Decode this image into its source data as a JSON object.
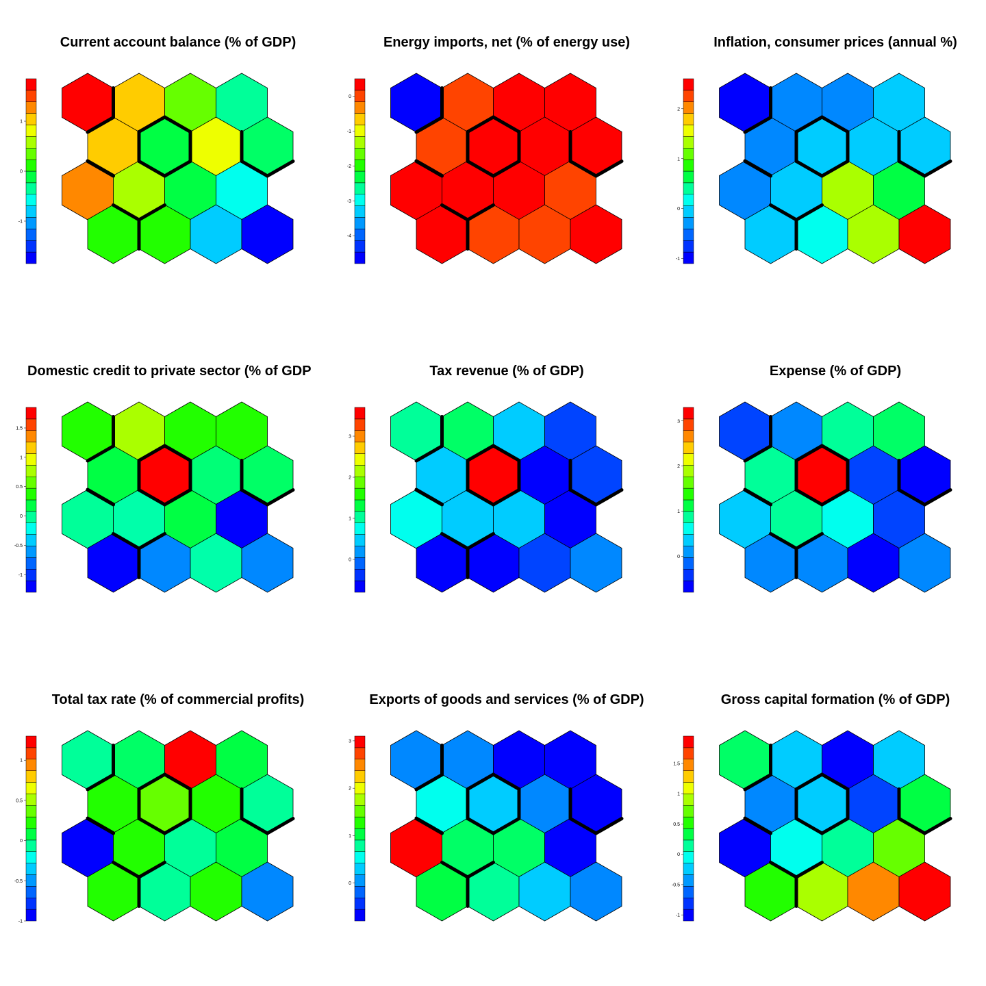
{
  "chart_data": {
    "type": "heatmap",
    "description_grid": "4x4 hexagonal self-organizing-map grid, 9 component planes",
    "palette": [
      "#0000ff",
      "#0033ff",
      "#0066ff",
      "#0099ff",
      "#00ccff",
      "#00ffee",
      "#00ff99",
      "#00ff44",
      "#22ff00",
      "#66ff00",
      "#aaff00",
      "#eeff00",
      "#ffcc00",
      "#ff8800",
      "#ff4400",
      "#ff0000"
    ],
    "panels": [
      {
        "title": "Current account balance (% of GDP)",
        "scale": {
          "min": -1.85,
          "max": 1.85,
          "ticks": [
            -1,
            0,
            1
          ],
          "tick_labels": [
            "-1",
            "0",
            "1"
          ]
        },
        "cells": [
          [
            "#ff0000",
            "#ffcc00",
            "#66ff00",
            "#00ff99"
          ],
          [
            "#ffcc00",
            "#00ff44",
            "#eeff00",
            "#00ff66"
          ],
          [
            "#ff8800",
            "#aaff00",
            "#00ff44",
            "#00ffee"
          ],
          [
            "#22ff00",
            "#22ff00",
            "#00ccff",
            "#0000ff"
          ]
        ]
      },
      {
        "title": "Energy imports, net (% of energy use)",
        "scale": {
          "min": -4.8,
          "max": 0.5,
          "ticks": [
            0,
            -1,
            -2,
            -3,
            -4
          ],
          "tick_labels": [
            "0",
            "-1",
            "-2",
            "-3",
            "-4"
          ]
        },
        "cells": [
          [
            "#0000ff",
            "#ff4400",
            "#ff0000",
            "#ff0000"
          ],
          [
            "#ff4400",
            "#ff0000",
            "#ff0000",
            "#ff0000"
          ],
          [
            "#ff0000",
            "#ff0000",
            "#ff0000",
            "#ff4400"
          ],
          [
            "#ff0000",
            "#ff4400",
            "#ff4400",
            "#ff0000"
          ]
        ]
      },
      {
        "title": "Inflation, consumer prices (annual %)",
        "scale": {
          "min": -1.1,
          "max": 2.6,
          "ticks": [
            2,
            1,
            0,
            -1
          ],
          "tick_labels": [
            "2",
            "1",
            "0",
            "-1"
          ]
        },
        "cells": [
          [
            "#0000ff",
            "#0088ff",
            "#0088ff",
            "#00ccff"
          ],
          [
            "#0088ff",
            "#00ccff",
            "#00ccff",
            "#00ccff"
          ],
          [
            "#0088ff",
            "#00ccff",
            "#aaff00",
            "#00ff44"
          ],
          [
            "#00ccff",
            "#00ffee",
            "#aaff00",
            "#ff0000"
          ]
        ]
      },
      {
        "title": "Domestic credit to private sector (% of GDP",
        "scale": {
          "min": -1.3,
          "max": 1.85,
          "ticks": [
            1.5,
            1,
            0.5,
            0,
            -0.5,
            -1
          ],
          "tick_labels": [
            "1.5",
            "1",
            "0.5",
            "0",
            "-0.5",
            "-1"
          ]
        },
        "cells": [
          [
            "#22ff00",
            "#aaff00",
            "#22ff00",
            "#22ff00"
          ],
          [
            "#00ff44",
            "#ff0000",
            "#00ff77",
            "#00ff66"
          ],
          [
            "#00ff99",
            "#00ffaa",
            "#00ff44",
            "#0000ff"
          ],
          [
            "#0000ff",
            "#0088ff",
            "#00ffaa",
            "#0088ff"
          ]
        ]
      },
      {
        "title": "Tax revenue (% of GDP)",
        "scale": {
          "min": -0.8,
          "max": 3.7,
          "ticks": [
            3,
            2,
            1,
            0
          ],
          "tick_labels": [
            "3",
            "2",
            "1",
            "0"
          ]
        },
        "cells": [
          [
            "#00ff99",
            "#00ff66",
            "#00ccff",
            "#0044ff"
          ],
          [
            "#00ccff",
            "#ff0000",
            "#0000ff",
            "#0044ff"
          ],
          [
            "#00ffee",
            "#00ccff",
            "#00ccff",
            "#0000ff"
          ],
          [
            "#0000ff",
            "#0000ff",
            "#0044ff",
            "#0088ff"
          ]
        ]
      },
      {
        "title": "Expense (% of GDP)",
        "scale": {
          "min": -0.8,
          "max": 3.3,
          "ticks": [
            3,
            2,
            1,
            0
          ],
          "tick_labels": [
            "3",
            "2",
            "1",
            "0"
          ]
        },
        "cells": [
          [
            "#0044ff",
            "#0088ff",
            "#00ff99",
            "#00ff66"
          ],
          [
            "#00ff99",
            "#ff0000",
            "#0044ff",
            "#0000ff"
          ],
          [
            "#00ccff",
            "#00ff99",
            "#00ffee",
            "#0044ff"
          ],
          [
            "#0088ff",
            "#0088ff",
            "#0000ff",
            "#0088ff"
          ]
        ]
      },
      {
        "title": "Total tax rate (% of commercial profits)",
        "scale": {
          "min": -1.0,
          "max": 1.3,
          "ticks": [
            1,
            0.5,
            0,
            -0.5,
            -1
          ],
          "tick_labels": [
            "1",
            "0.5",
            "0",
            "-0.5",
            "-1"
          ]
        },
        "cells": [
          [
            "#00ff99",
            "#00ff66",
            "#ff0000",
            "#00ff44"
          ],
          [
            "#22ff00",
            "#66ff00",
            "#22ff00",
            "#00ff99"
          ],
          [
            "#0000ff",
            "#22ff00",
            "#00ff99",
            "#00ff44"
          ],
          [
            "#22ff00",
            "#00ff99",
            "#22ff00",
            "#0088ff"
          ]
        ]
      },
      {
        "title": "Exports of goods and services (% of GDP)",
        "scale": {
          "min": -0.8,
          "max": 3.1,
          "ticks": [
            3,
            2,
            1,
            0
          ],
          "tick_labels": [
            "3",
            "2",
            "1",
            "0"
          ]
        },
        "cells": [
          [
            "#0088ff",
            "#0088ff",
            "#0000ff",
            "#0000ff"
          ],
          [
            "#00ffee",
            "#00ccff",
            "#0088ff",
            "#0000ff"
          ],
          [
            "#ff0000",
            "#00ff66",
            "#00ff66",
            "#0000ff"
          ],
          [
            "#00ff44",
            "#00ff99",
            "#00ccff",
            "#0088ff"
          ]
        ]
      },
      {
        "title": "Gross capital formation (% of GDP)",
        "scale": {
          "min": -1.1,
          "max": 1.95,
          "ticks": [
            1.5,
            1,
            0.5,
            0,
            -0.5,
            -1
          ],
          "tick_labels": [
            "1.5",
            "1",
            "0.5",
            "0",
            "-0.5",
            "-1"
          ]
        },
        "cells": [
          [
            "#00ff66",
            "#00ccff",
            "#0000ff",
            "#00ccff"
          ],
          [
            "#0088ff",
            "#00ccff",
            "#0044ff",
            "#00ff44"
          ],
          [
            "#0000ff",
            "#00ffee",
            "#00ff99",
            "#66ff00"
          ],
          [
            "#22ff00",
            "#aaff00",
            "#ff8800",
            "#ff0000"
          ]
        ]
      }
    ],
    "cluster_boundaries": "thick black lines separating clusters of nodes (same layout on every panel)"
  }
}
